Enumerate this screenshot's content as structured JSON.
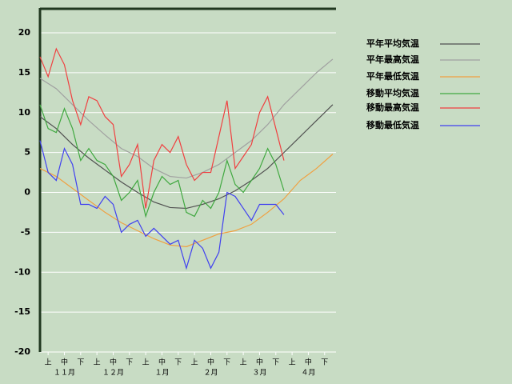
{
  "chart_data": {
    "type": "line",
    "x": [
      0,
      10,
      20,
      30,
      40,
      50,
      60,
      70,
      80,
      90,
      100,
      110,
      120,
      130,
      140,
      150,
      160,
      170,
      180
    ],
    "xlim": [
      0,
      182
    ],
    "xticks": [
      {
        "value": 5,
        "label": "上"
      },
      {
        "value": 15,
        "label": "中"
      },
      {
        "value": 25,
        "label": "下"
      },
      {
        "value": 35,
        "label": "上"
      },
      {
        "value": 45,
        "label": "中"
      },
      {
        "value": 55,
        "label": "下"
      },
      {
        "value": 65,
        "label": "上"
      },
      {
        "value": 75,
        "label": "中"
      },
      {
        "value": 85,
        "label": "下"
      },
      {
        "value": 95,
        "label": "上"
      },
      {
        "value": 105,
        "label": "中"
      },
      {
        "value": 115,
        "label": "下"
      },
      {
        "value": 125,
        "label": "上"
      },
      {
        "value": 135,
        "label": "中"
      },
      {
        "value": 145,
        "label": "下"
      },
      {
        "value": 155,
        "label": "上"
      },
      {
        "value": 165,
        "label": "中"
      },
      {
        "value": 175,
        "label": "下"
      }
    ],
    "xmonths": [
      {
        "value": 15,
        "label": "１１月"
      },
      {
        "value": 45,
        "label": "１２月"
      },
      {
        "value": 75,
        "label": "１月"
      },
      {
        "value": 105,
        "label": "２月"
      },
      {
        "value": 135,
        "label": "３月"
      },
      {
        "value": 165,
        "label": "４月"
      }
    ],
    "ylim": [
      -20,
      20
    ],
    "yticks": [
      -20,
      -15,
      -10,
      -5,
      0,
      5,
      10,
      15,
      20
    ],
    "grid": true,
    "legend": "right",
    "series": [
      {
        "name": "平年平均気温",
        "color": "#505050",
        "values": [
          9.5,
          8,
          6,
          4.3,
          2.8,
          1.3,
          0,
          -1.2,
          -1.9,
          -2,
          -1.5,
          -0.8,
          0.2,
          1.5,
          3,
          5,
          7,
          9,
          11
        ]
      },
      {
        "name": "平年最高気温",
        "color": "#a0a0a0",
        "values": [
          14.3,
          13,
          11,
          9,
          7.2,
          5.5,
          4.5,
          3,
          2,
          1.8,
          2.5,
          3.5,
          5,
          6.5,
          8.5,
          11,
          13,
          15,
          16.7
        ]
      },
      {
        "name": "平年最低気温",
        "color": "#f0a040",
        "values": [
          3,
          2,
          0.5,
          -1,
          -2.5,
          -3.8,
          -4.8,
          -5.8,
          -6.6,
          -6.8,
          -6,
          -5.2,
          -4.8,
          -4,
          -2.5,
          -0.8,
          1.5,
          3,
          4.8
        ]
      },
      {
        "name": "移動平均気温",
        "color": "#40a840",
        "x": [
          0,
          5,
          10,
          15,
          20,
          25,
          30,
          35,
          40,
          45,
          50,
          55,
          60,
          65,
          70,
          75,
          80,
          85,
          90,
          95,
          100,
          105,
          110,
          115,
          120,
          125,
          130,
          135,
          140,
          145,
          150
        ],
        "values": [
          11,
          8,
          7.5,
          10.5,
          8,
          4,
          5.5,
          4,
          3.5,
          2,
          -1,
          0,
          1.5,
          -3,
          0,
          2,
          1,
          1.5,
          -2.5,
          -3,
          -1,
          -2,
          0,
          4,
          1,
          0,
          1.5,
          3,
          5.5,
          3.5,
          0.2
        ]
      },
      {
        "name": "移動最高気温",
        "color": "#f04040",
        "x": [
          0,
          5,
          10,
          15,
          20,
          25,
          30,
          35,
          40,
          45,
          50,
          55,
          60,
          65,
          70,
          75,
          80,
          85,
          90,
          95,
          100,
          105,
          110,
          115,
          120,
          125,
          130,
          135,
          140,
          145,
          150
        ],
        "values": [
          17,
          14.5,
          18,
          16,
          11.5,
          8.5,
          12,
          11.5,
          9.5,
          8.5,
          2,
          3.5,
          6,
          -2,
          4,
          6,
          5,
          7,
          3.5,
          1.5,
          2.5,
          2.5,
          7,
          11.5,
          3,
          4.5,
          6,
          10,
          12,
          8,
          4
        ]
      },
      {
        "name": "移動最低気温",
        "color": "#4040f0",
        "x": [
          0,
          5,
          10,
          15,
          20,
          25,
          30,
          35,
          40,
          45,
          50,
          55,
          60,
          65,
          70,
          75,
          80,
          85,
          90,
          95,
          100,
          105,
          110,
          115,
          120,
          125,
          130,
          135,
          140,
          145,
          150
        ],
        "values": [
          6.5,
          2.5,
          1.5,
          5.5,
          3.5,
          -1.5,
          -1.5,
          -2,
          -0.5,
          -1.5,
          -5,
          -4,
          -3.5,
          -5.5,
          -4.5,
          -5.5,
          -6.5,
          -6,
          -9.5,
          -6,
          -7,
          -9.5,
          -7.5,
          0,
          -0.5,
          -2,
          -3.5,
          -1.5,
          -1.5,
          -1.5,
          -2.8
        ]
      }
    ]
  }
}
